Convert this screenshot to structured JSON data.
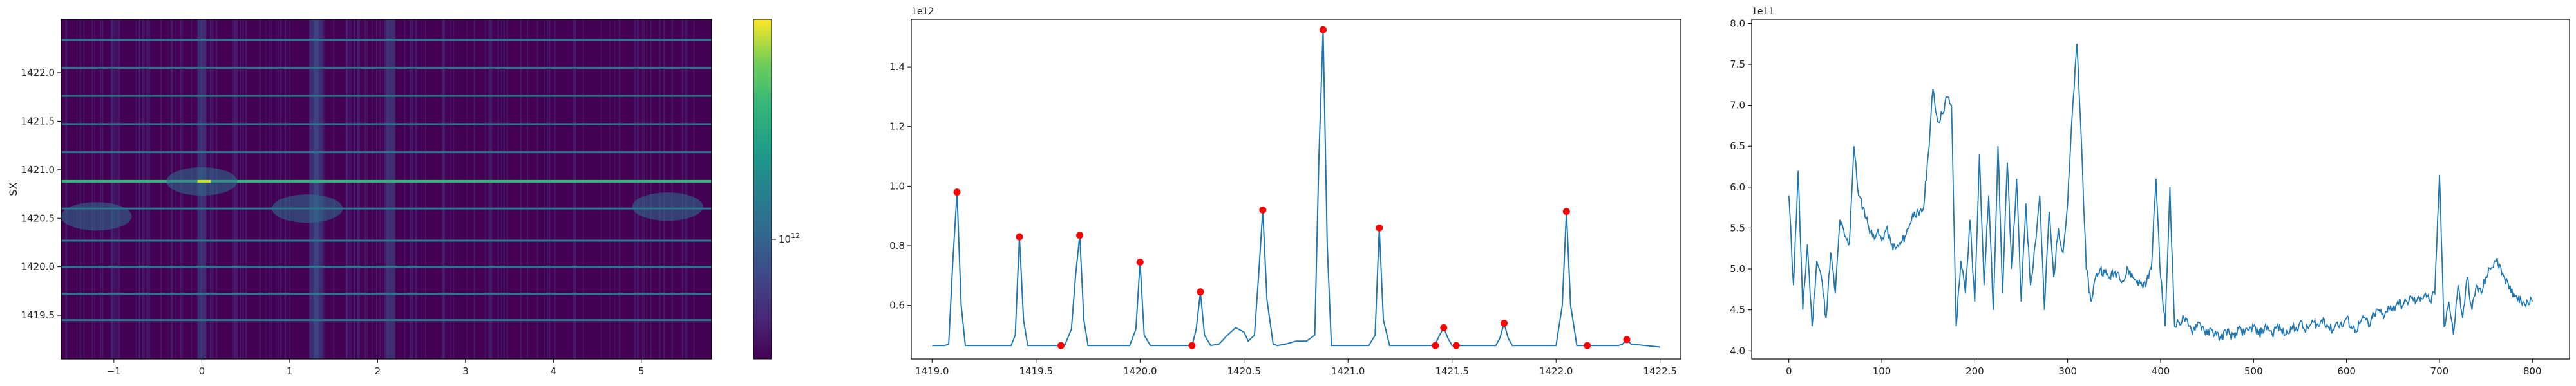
{
  "chart_data": [
    {
      "type": "heatmap",
      "title": "",
      "xlabel": "",
      "ylabel": "SX",
      "xlim": [
        -1.6,
        5.8
      ],
      "ylim": [
        1419.05,
        1422.55
      ],
      "xticks": [
        -1,
        0,
        1,
        2,
        3,
        4,
        5
      ],
      "xtick_labels": [
        "−1",
        "0",
        "1",
        "2",
        "3",
        "4",
        "5"
      ],
      "yticks": [
        1419.5,
        1420.0,
        1420.5,
        1421.0,
        1421.5,
        1422.0
      ],
      "ytick_labels": [
        "1419.5",
        "1420.0",
        "1420.5",
        "1421.0",
        "1421.5",
        "1422.0"
      ],
      "colormap": "viridis",
      "colorbar": {
        "scale": "log",
        "tick_label_base": "10",
        "tick_label_exp": "12"
      },
      "bright_rows_y": [
        1419.45,
        1419.72,
        1420.0,
        1420.27,
        1420.6,
        1420.88,
        1421.18,
        1421.47,
        1421.76,
        1422.05,
        1422.34
      ],
      "strongest_row_y": 1420.88,
      "bright_columns_x": [
        0.0,
        1.28,
        1.32,
        2.15
      ]
    },
    {
      "type": "line",
      "title": "",
      "xlabel": "",
      "ylabel": "",
      "offset_label": "1e12",
      "xlim": [
        1418.9,
        1422.6
      ],
      "ylim": [
        0.42,
        1.56
      ],
      "xticks": [
        1419.0,
        1419.5,
        1420.0,
        1420.5,
        1421.0,
        1421.5,
        1422.0,
        1422.5
      ],
      "xtick_labels": [
        "1419.0",
        "1419.5",
        "1420.0",
        "1420.5",
        "1421.0",
        "1421.5",
        "1422.0",
        "1422.5"
      ],
      "yticks": [
        0.6,
        0.8,
        1.0,
        1.2,
        1.4
      ],
      "ytick_labels": [
        "0.6",
        "0.8",
        "1.0",
        "1.2",
        "1.4"
      ],
      "line_color": "#1f77b4",
      "marker_color": "#ff0000",
      "x": [
        1419.0,
        1419.06,
        1419.08,
        1419.1,
        1419.12,
        1419.14,
        1419.16,
        1419.38,
        1419.4,
        1419.42,
        1419.44,
        1419.46,
        1419.6,
        1419.62,
        1419.64,
        1419.67,
        1419.69,
        1419.71,
        1419.73,
        1419.75,
        1419.95,
        1419.98,
        1420.0,
        1420.02,
        1420.05,
        1420.23,
        1420.25,
        1420.27,
        1420.29,
        1420.31,
        1420.34,
        1420.38,
        1420.42,
        1420.46,
        1420.5,
        1420.52,
        1420.55,
        1420.57,
        1420.59,
        1420.61,
        1420.64,
        1420.66,
        1420.7,
        1420.75,
        1420.8,
        1420.84,
        1420.86,
        1420.88,
        1420.9,
        1420.92,
        1421.1,
        1421.13,
        1421.15,
        1421.17,
        1421.2,
        1421.38,
        1421.4,
        1421.42,
        1421.44,
        1421.46,
        1421.48,
        1421.5,
        1421.52,
        1421.71,
        1421.73,
        1421.75,
        1421.77,
        1421.79,
        1422.0,
        1422.03,
        1422.05,
        1422.07,
        1422.1,
        1422.13,
        1422.15,
        1422.3,
        1422.32,
        1422.34,
        1422.36,
        1422.5
      ],
      "y": [
        0.465,
        0.465,
        0.47,
        0.75,
        0.98,
        0.6,
        0.465,
        0.465,
        0.5,
        0.83,
        0.55,
        0.465,
        0.465,
        0.465,
        0.47,
        0.52,
        0.7,
        0.835,
        0.55,
        0.465,
        0.465,
        0.52,
        0.745,
        0.5,
        0.465,
        0.465,
        0.465,
        0.52,
        0.645,
        0.5,
        0.465,
        0.47,
        0.5,
        0.525,
        0.51,
        0.48,
        0.5,
        0.7,
        0.92,
        0.62,
        0.47,
        0.465,
        0.47,
        0.48,
        0.48,
        0.5,
        1.1,
        1.525,
        0.8,
        0.465,
        0.465,
        0.5,
        0.86,
        0.55,
        0.465,
        0.465,
        0.465,
        0.47,
        0.5,
        0.525,
        0.49,
        0.465,
        0.465,
        0.465,
        0.49,
        0.54,
        0.49,
        0.465,
        0.465,
        0.6,
        0.915,
        0.6,
        0.465,
        0.465,
        0.465,
        0.465,
        0.47,
        0.485,
        0.47,
        0.46
      ],
      "markers_x": [
        1419.12,
        1419.42,
        1419.62,
        1419.71,
        1420.0,
        1420.25,
        1420.29,
        1420.59,
        1420.88,
        1421.15,
        1421.42,
        1421.46,
        1421.52,
        1421.75,
        1422.05,
        1422.15,
        1422.34
      ],
      "markers_y": [
        0.98,
        0.83,
        0.465,
        0.835,
        0.745,
        0.465,
        0.645,
        0.92,
        1.525,
        0.86,
        0.465,
        0.525,
        0.465,
        0.54,
        0.915,
        0.465,
        0.485
      ]
    },
    {
      "type": "line",
      "title": "",
      "xlabel": "",
      "ylabel": "",
      "offset_label": "1e11",
      "xlim": [
        -40,
        840
      ],
      "ylim": [
        3.9,
        8.05
      ],
      "xticks": [
        0,
        100,
        200,
        300,
        400,
        500,
        600,
        700,
        800
      ],
      "xtick_labels": [
        "0",
        "100",
        "200",
        "300",
        "400",
        "500",
        "600",
        "700",
        "800"
      ],
      "yticks": [
        4.0,
        4.5,
        5.0,
        5.5,
        6.0,
        6.5,
        7.0,
        7.5,
        8.0
      ],
      "ytick_labels": [
        "4.0",
        "4.5",
        "5.0",
        "5.5",
        "6.0",
        "6.5",
        "7.0",
        "7.5",
        "8.0"
      ],
      "line_color": "#1f77b4",
      "anchors_x": [
        0,
        5,
        10,
        15,
        20,
        25,
        30,
        35,
        40,
        45,
        50,
        55,
        60,
        65,
        70,
        75,
        80,
        85,
        90,
        95,
        100,
        105,
        110,
        115,
        120,
        125,
        130,
        135,
        140,
        145,
        150,
        155,
        160,
        165,
        170,
        175,
        180,
        185,
        190,
        195,
        200,
        205,
        210,
        215,
        220,
        225,
        230,
        235,
        240,
        245,
        250,
        255,
        260,
        265,
        270,
        275,
        280,
        285,
        290,
        295,
        300,
        305,
        310,
        315,
        320,
        325,
        330,
        335,
        340,
        345,
        350,
        355,
        360,
        365,
        370,
        375,
        380,
        385,
        390,
        395,
        400,
        405,
        410,
        415,
        420,
        425,
        430,
        435,
        440,
        445,
        450,
        455,
        460,
        465,
        470,
        475,
        480,
        485,
        490,
        495,
        500,
        505,
        510,
        515,
        520,
        525,
        530,
        535,
        540,
        545,
        550,
        555,
        560,
        565,
        570,
        575,
        580,
        585,
        590,
        595,
        600,
        605,
        610,
        615,
        620,
        625,
        630,
        635,
        640,
        645,
        650,
        655,
        660,
        665,
        670,
        675,
        680,
        685,
        690,
        695,
        700,
        705,
        710,
        715,
        720,
        725,
        730,
        735,
        740,
        745,
        750,
        755,
        760,
        765,
        770,
        775,
        780,
        785,
        790,
        795,
        800
      ],
      "anchors_y": [
        5.9,
        4.8,
        6.2,
        4.5,
        5.3,
        4.3,
        5.1,
        4.9,
        4.4,
        5.2,
        4.7,
        5.6,
        5.4,
        5.3,
        6.5,
        5.9,
        5.75,
        5.55,
        5.4,
        5.45,
        5.35,
        5.5,
        5.3,
        5.25,
        5.3,
        5.4,
        5.55,
        5.7,
        5.65,
        5.75,
        6.4,
        7.2,
        6.8,
        6.9,
        7.1,
        7.0,
        4.3,
        5.1,
        4.7,
        5.6,
        4.6,
        6.4,
        4.8,
        5.9,
        4.5,
        6.5,
        4.7,
        6.3,
        5.0,
        6.1,
        4.6,
        5.8,
        4.8,
        5.3,
        5.9,
        4.5,
        5.7,
        4.9,
        5.5,
        5.2,
        5.8,
        6.9,
        7.75,
        6.5,
        5.0,
        4.6,
        4.9,
        5.0,
        4.95,
        4.9,
        4.95,
        4.95,
        4.85,
        5.0,
        4.9,
        4.85,
        4.8,
        4.85,
        5.0,
        6.1,
        4.9,
        4.3,
        6.0,
        4.3,
        4.35,
        4.4,
        4.3,
        4.25,
        4.35,
        4.3,
        4.2,
        4.25,
        4.2,
        4.15,
        4.25,
        4.2,
        4.15,
        4.3,
        4.2,
        4.25,
        4.3,
        4.2,
        4.25,
        4.3,
        4.2,
        4.3,
        4.25,
        4.2,
        4.3,
        4.25,
        4.35,
        4.25,
        4.3,
        4.35,
        4.3,
        4.4,
        4.3,
        4.25,
        4.35,
        4.3,
        4.4,
        4.3,
        4.25,
        4.35,
        4.4,
        4.3,
        4.45,
        4.5,
        4.4,
        4.55,
        4.5,
        4.6,
        4.55,
        4.6,
        4.65,
        4.6,
        4.65,
        4.7,
        4.6,
        4.7,
        6.15,
        4.3,
        4.6,
        4.2,
        4.8,
        4.4,
        4.9,
        4.5,
        4.8,
        4.7,
        4.9,
        5.0,
        5.1,
        5.05,
        4.9,
        4.75,
        4.7,
        4.65,
        4.6,
        4.6,
        4.6
      ]
    }
  ]
}
